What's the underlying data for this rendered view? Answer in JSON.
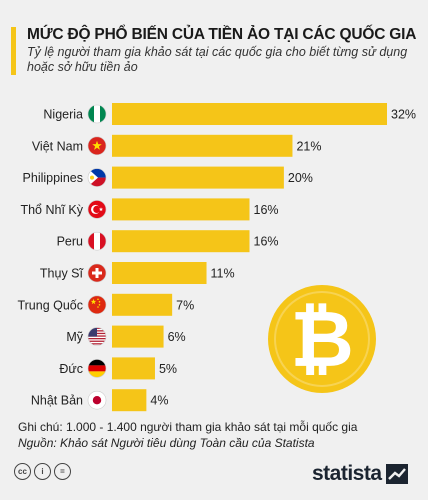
{
  "title": "MỨC ĐỘ PHỔ BIẾN CỦA TIỀN ẢO TẠI CÁC QUỐC GIA",
  "subtitle": "Tỷ lệ người tham gia khảo sát tại các quốc gia cho biết từng sử dụng hoặc sở hữu tiền ảo",
  "note": "Ghi chú: 1.000 - 1.400 người tham gia khảo sát tại mỗi quốc gia",
  "source": "Nguồn: Khảo sát Người tiêu dùng Toàn cầu của Statista",
  "brand": "statista",
  "license_icons": [
    "cc-icon",
    "by-icon",
    "nd-icon"
  ],
  "colors": {
    "bar": "#f5c518",
    "accent": "#f5c518",
    "coin": "#f5c518",
    "coin_symbol": "#ffffff"
  },
  "chart_data": {
    "type": "bar",
    "orientation": "horizontal",
    "categories": [
      "Nigeria",
      "Việt Nam",
      "Philippines",
      "Thổ Nhĩ Kỳ",
      "Peru",
      "Thụy Sĩ",
      "Trung Quốc",
      "Mỹ",
      "Đức",
      "Nhật Bản"
    ],
    "values": [
      32,
      21,
      20,
      16,
      16,
      11,
      7,
      6,
      5,
      4
    ],
    "value_labels": [
      "32%",
      "21%",
      "20%",
      "16%",
      "16%",
      "11%",
      "7%",
      "6%",
      "5%",
      "4%"
    ],
    "flags": [
      "nigeria-flag",
      "vietnam-flag",
      "philippines-flag",
      "turkey-flag",
      "peru-flag",
      "switzerland-flag",
      "china-flag",
      "usa-flag",
      "germany-flag",
      "japan-flag"
    ],
    "unit": "%",
    "xlim": [
      0,
      32
    ],
    "grid": false,
    "title": "MỨC ĐỘ PHỔ BIẾN CỦA TIỀN ẢO TẠI CÁC QUỐC GIA",
    "xlabel": "",
    "ylabel": ""
  }
}
